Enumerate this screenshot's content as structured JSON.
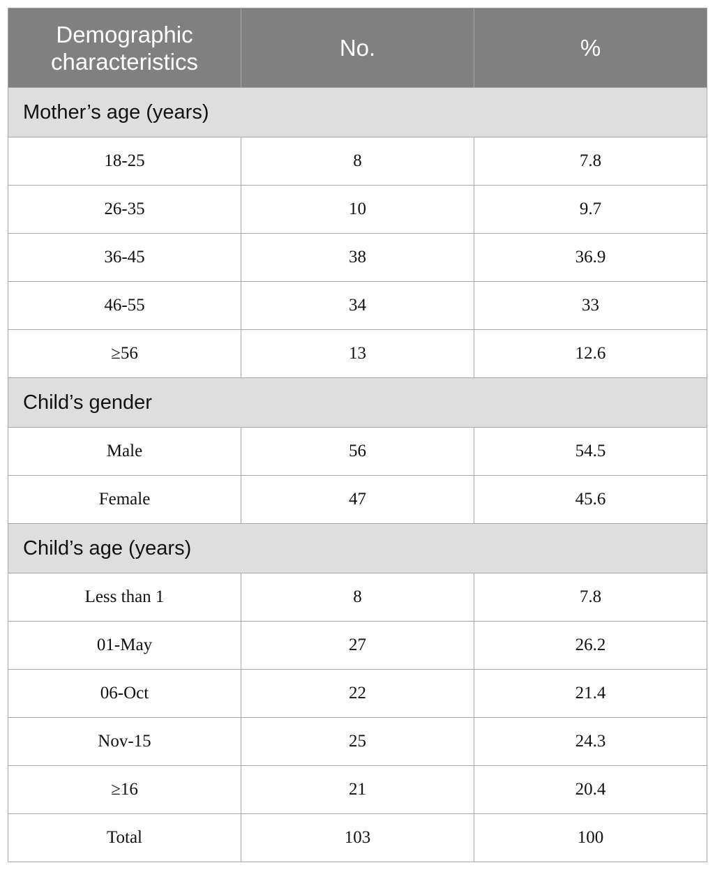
{
  "table": {
    "headers": [
      "Demographic characteristics",
      "No.",
      "%"
    ],
    "sections": [
      {
        "title": "Mother’s age (years)",
        "rows": [
          [
            "18-25",
            "8",
            "7.8"
          ],
          [
            "26-35",
            "10",
            "9.7"
          ],
          [
            "36-45",
            "38",
            "36.9"
          ],
          [
            "46-55",
            "34",
            "33"
          ],
          [
            "≥56",
            "13",
            "12.6"
          ]
        ]
      },
      {
        "title": "Child’s gender",
        "rows": [
          [
            "Male",
            "56",
            "54.5"
          ],
          [
            "Female",
            "47",
            "45.6"
          ]
        ]
      },
      {
        "title": "Child’s age (years)",
        "rows": [
          [
            "Less than 1",
            "8",
            "7.8"
          ],
          [
            "01-May",
            "27",
            "26.2"
          ],
          [
            "06-Oct",
            "22",
            "21.4"
          ],
          [
            "Nov-15",
            "25",
            "24.3"
          ],
          [
            "≥16",
            "21",
            "20.4"
          ]
        ]
      }
    ],
    "total": [
      "Total",
      "103",
      "100"
    ]
  },
  "colors": {
    "header_bg": "#808080",
    "section_bg": "#dedede",
    "border": "#a6a6a6"
  }
}
